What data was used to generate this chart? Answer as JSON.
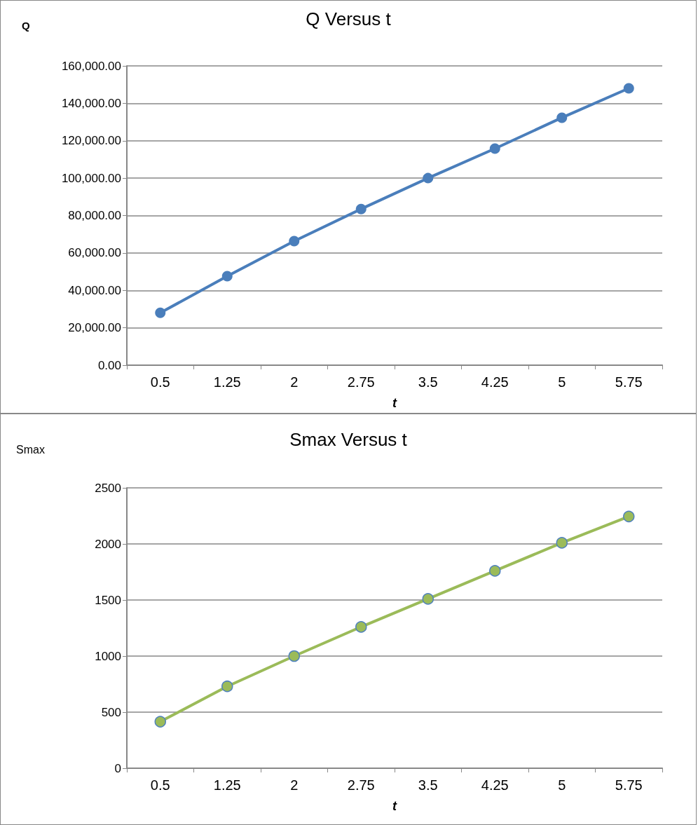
{
  "chart_data": [
    {
      "type": "line",
      "title": "Q Versus t",
      "xlabel": "t",
      "ylabel": "Q",
      "categories": [
        "0.5",
        "1.25",
        "2",
        "2.75",
        "3.5",
        "4.25",
        "5",
        "5.75"
      ],
      "series": [
        {
          "color": "#4a7ebb",
          "values": [
            28000,
            47600,
            66300,
            83500,
            100000,
            115800,
            132300,
            148000
          ]
        }
      ],
      "ylim": [
        0,
        160000
      ],
      "yticks": [
        {
          "value": 0,
          "label": "0.00"
        },
        {
          "value": 20000,
          "label": "20,000.00"
        },
        {
          "value": 40000,
          "label": "40,000.00"
        },
        {
          "value": 60000,
          "label": "60,000.00"
        },
        {
          "value": 80000,
          "label": "80,000.00"
        },
        {
          "value": 100000,
          "label": "100,000.00"
        },
        {
          "value": 120000,
          "label": "120,000.00"
        },
        {
          "value": 140000,
          "label": "140,000.00"
        },
        {
          "value": 160000,
          "label": "160,000.00"
        }
      ],
      "grid": "y",
      "marker": "circle",
      "line_style": "solid"
    },
    {
      "type": "line",
      "title": "Smax Versus t",
      "xlabel": "t",
      "ylabel": "Smax",
      "categories": [
        "0.5",
        "1.25",
        "2",
        "2.75",
        "3.5",
        "4.25",
        "5",
        "5.75"
      ],
      "series": [
        {
          "color": "#9bbb59",
          "values": [
            415,
            730,
            1000,
            1260,
            1510,
            1760,
            2010,
            2245
          ]
        }
      ],
      "ylim": [
        0,
        2500
      ],
      "yticks": [
        0,
        500,
        1000,
        1500,
        2000,
        2500
      ],
      "grid": "y",
      "marker": "circle",
      "line_style": "solid"
    }
  ]
}
